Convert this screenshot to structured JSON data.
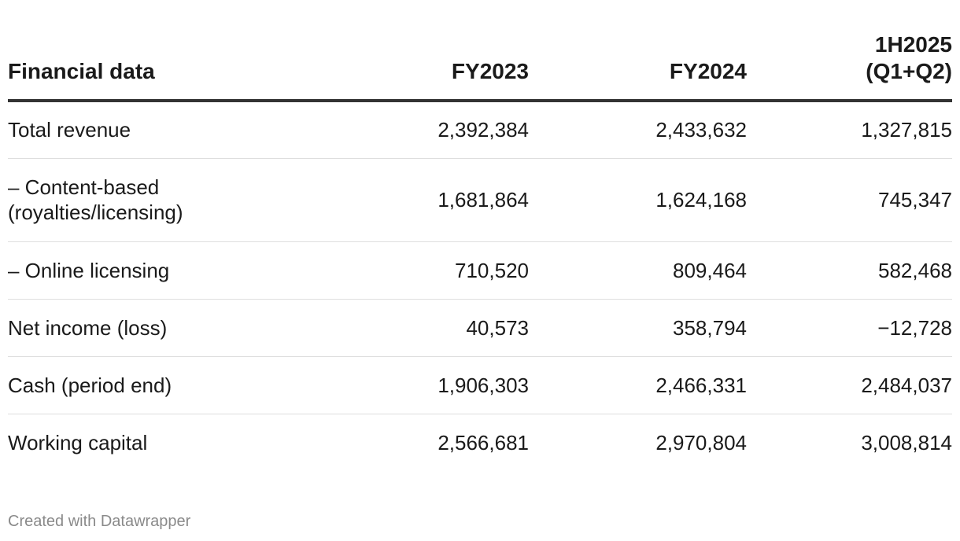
{
  "chart_data": {
    "type": "table",
    "columns": [
      "Financial data",
      "FY2023",
      "FY2024",
      "1H2025\n(Q1+Q2)"
    ],
    "rows": [
      {
        "label": "Total revenue",
        "values": [
          "2,392,384",
          "2,433,632",
          "1,327,815"
        ]
      },
      {
        "label": "– Content-based\n(royalties/licensing)",
        "values": [
          "1,681,864",
          "1,624,168",
          "745,347"
        ]
      },
      {
        "label": "– Online licensing",
        "values": [
          "710,520",
          "809,464",
          "582,468"
        ]
      },
      {
        "label": "Net income (loss)",
        "values": [
          "40,573",
          "358,794",
          "−12,728"
        ]
      },
      {
        "label": "Cash (period end)",
        "values": [
          "1,906,303",
          "2,466,331",
          "2,484,037"
        ]
      },
      {
        "label": "Working capital",
        "values": [
          "2,566,681",
          "2,970,804",
          "3,008,814"
        ]
      }
    ]
  },
  "footer": {
    "credit": "Created with Datawrapper"
  }
}
